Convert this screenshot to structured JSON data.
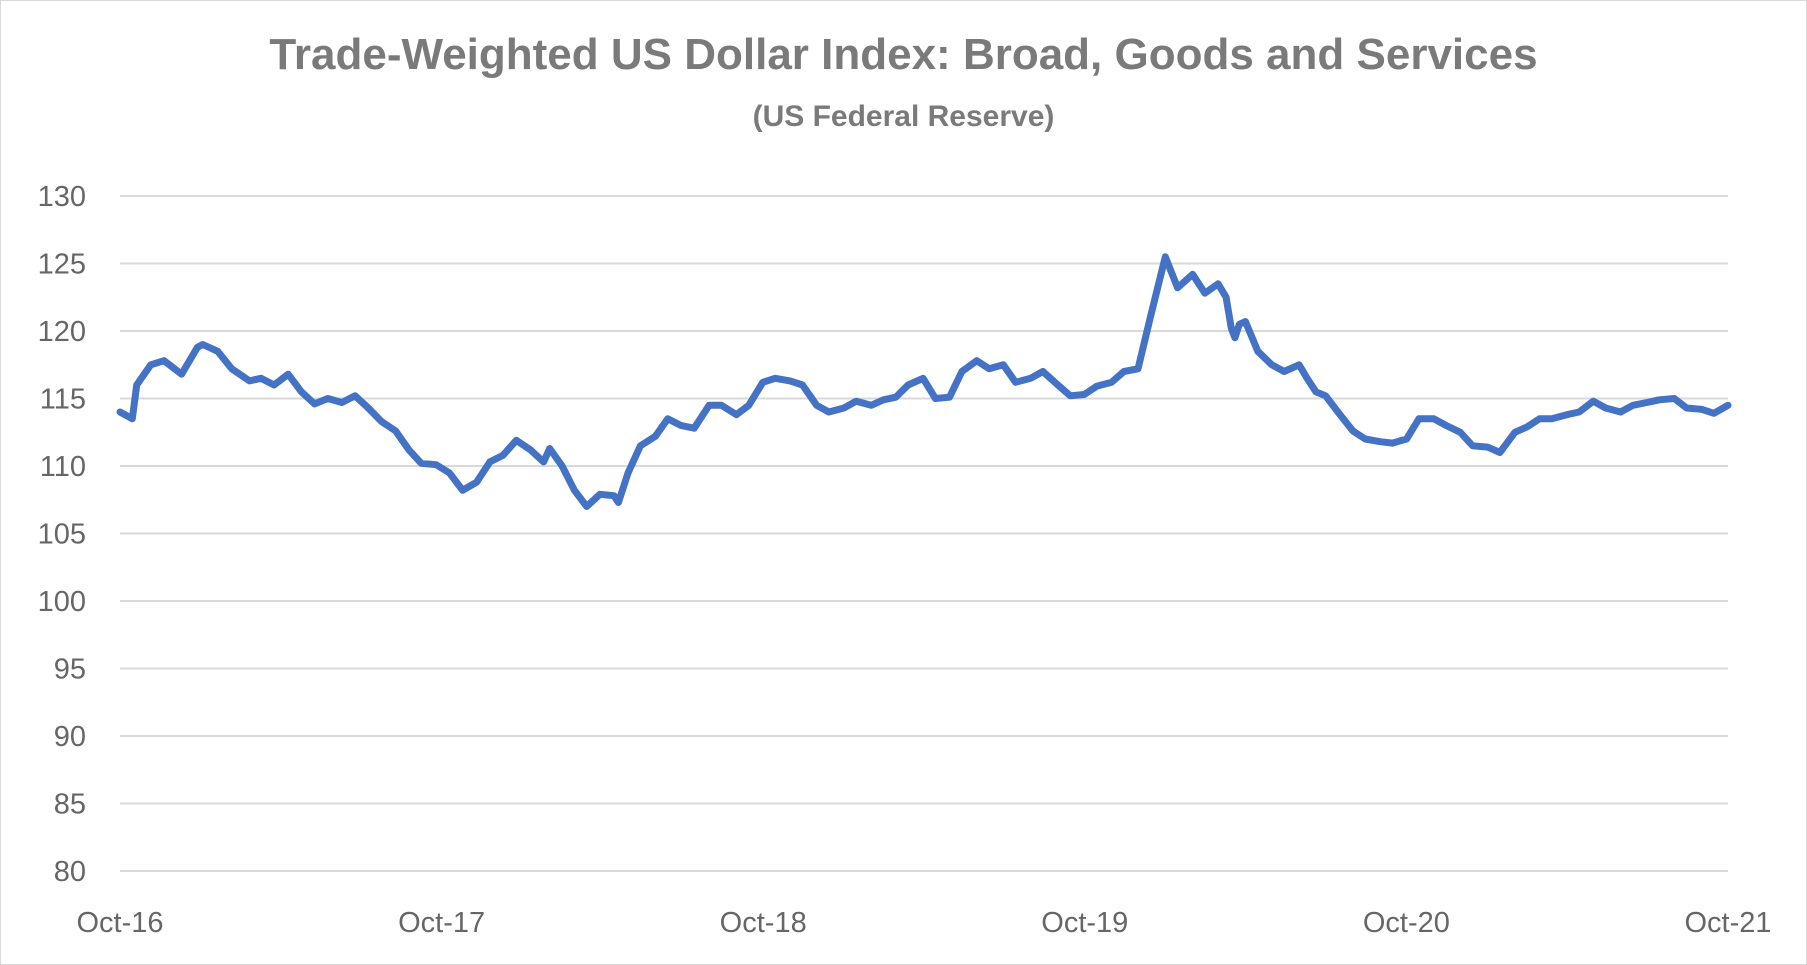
{
  "chart_data": {
    "type": "line",
    "title": "Trade-Weighted US Dollar Index: Broad, Goods and Services",
    "subtitle": "(US Federal Reserve)",
    "xlabel": "",
    "ylabel": "",
    "ylim": [
      80,
      130
    ],
    "yticks": [
      "80",
      "85",
      "90",
      "95",
      "100",
      "105",
      "110",
      "115",
      "120",
      "125",
      "130"
    ],
    "xticks": [
      "Oct-16",
      "Oct-17",
      "Oct-18",
      "Oct-19",
      "Oct-20",
      "Oct-21"
    ],
    "x_range": [
      "2016-10-01",
      "2021-10-01"
    ],
    "grid": "horizontal",
    "legend": "none",
    "line_color": "#4472C4",
    "series": [
      {
        "x": [
          "2016-10-01",
          "2016-10-15",
          "2016-10-20",
          "2016-11-05",
          "2016-11-20",
          "2016-12-10",
          "2016-12-28",
          "2017-01-03",
          "2017-01-20",
          "2017-02-05",
          "2017-02-25",
          "2017-03-10",
          "2017-03-25",
          "2017-04-10",
          "2017-04-25",
          "2017-05-10",
          "2017-05-25",
          "2017-06-10",
          "2017-06-25",
          "2017-07-10",
          "2017-07-25",
          "2017-08-10",
          "2017-08-25",
          "2017-09-08",
          "2017-09-25",
          "2017-10-10",
          "2017-10-25",
          "2017-11-10",
          "2017-11-25",
          "2017-12-10",
          "2017-12-25",
          "2018-01-10",
          "2018-01-25",
          "2018-02-01",
          "2018-02-15",
          "2018-03-01",
          "2018-03-15",
          "2018-03-30",
          "2018-04-15",
          "2018-04-20",
          "2018-05-01",
          "2018-05-15",
          "2018-06-01",
          "2018-06-15",
          "2018-06-30",
          "2018-07-15",
          "2018-08-01",
          "2018-08-15",
          "2018-09-01",
          "2018-09-15",
          "2018-10-01",
          "2018-10-15",
          "2018-11-01",
          "2018-11-15",
          "2018-12-01",
          "2018-12-15",
          "2019-01-01",
          "2019-01-15",
          "2019-02-01",
          "2019-02-15",
          "2019-03-01",
          "2019-03-15",
          "2019-04-01",
          "2019-04-15",
          "2019-05-01",
          "2019-05-15",
          "2019-06-01",
          "2019-06-15",
          "2019-07-01",
          "2019-07-15",
          "2019-08-01",
          "2019-08-15",
          "2019-09-01",
          "2019-09-15",
          "2019-10-01",
          "2019-10-15",
          "2019-11-01",
          "2019-11-15",
          "2019-12-01",
          "2019-12-15",
          "2020-01-01",
          "2020-01-15",
          "2020-02-01",
          "2020-02-15",
          "2020-03-01",
          "2020-03-10",
          "2020-03-16",
          "2020-03-20",
          "2020-03-25",
          "2020-04-01",
          "2020-04-15",
          "2020-05-01",
          "2020-05-15",
          "2020-06-01",
          "2020-06-10",
          "2020-06-20",
          "2020-07-01",
          "2020-07-15",
          "2020-08-01",
          "2020-08-15",
          "2020-09-01",
          "2020-09-15",
          "2020-10-01",
          "2020-10-15",
          "2020-11-01",
          "2020-11-15",
          "2020-12-01",
          "2020-12-15",
          "2021-01-01",
          "2021-01-15",
          "2021-02-01",
          "2021-02-15",
          "2021-03-01",
          "2021-03-15",
          "2021-04-01",
          "2021-04-15",
          "2021-05-01",
          "2021-05-15",
          "2021-06-01",
          "2021-06-15",
          "2021-07-01",
          "2021-07-15",
          "2021-08-01",
          "2021-08-15",
          "2021-09-01",
          "2021-09-15",
          "2021-10-01"
        ],
        "y": [
          114.0,
          113.5,
          116.0,
          117.5,
          117.8,
          116.8,
          118.8,
          119.0,
          118.5,
          117.2,
          116.3,
          116.5,
          116.0,
          116.8,
          115.5,
          114.6,
          115.0,
          114.7,
          115.2,
          114.3,
          113.3,
          112.6,
          111.2,
          110.2,
          110.1,
          109.5,
          108.2,
          108.8,
          110.3,
          110.8,
          111.9,
          111.2,
          110.3,
          111.3,
          110.0,
          108.2,
          107.0,
          107.9,
          107.8,
          107.3,
          109.5,
          111.5,
          112.2,
          113.5,
          113.0,
          112.8,
          114.5,
          114.5,
          113.8,
          114.5,
          116.2,
          116.5,
          116.3,
          116.0,
          114.5,
          114.0,
          114.3,
          114.8,
          114.5,
          114.9,
          115.1,
          116.0,
          116.5,
          115.0,
          115.1,
          117.0,
          117.8,
          117.2,
          117.5,
          116.2,
          116.5,
          117.0,
          116.0,
          115.2,
          115.3,
          115.9,
          116.2,
          117.0,
          117.2,
          121.0,
          125.5,
          123.2,
          124.2,
          122.8,
          123.5,
          122.5,
          120.2,
          119.5,
          120.5,
          120.7,
          118.5,
          117.5,
          117.0,
          117.5,
          116.5,
          115.5,
          115.2,
          114.0,
          112.6,
          112.0,
          111.8,
          111.7,
          112.0,
          113.5,
          113.5,
          113.0,
          112.5,
          111.5,
          111.4,
          111.0,
          112.5,
          112.9,
          113.5,
          113.5,
          113.8,
          114.0,
          114.8,
          114.3,
          114.0,
          114.5,
          114.7,
          114.9,
          115.0,
          114.3,
          114.2,
          113.9,
          114.5
        ]
      }
    ]
  }
}
